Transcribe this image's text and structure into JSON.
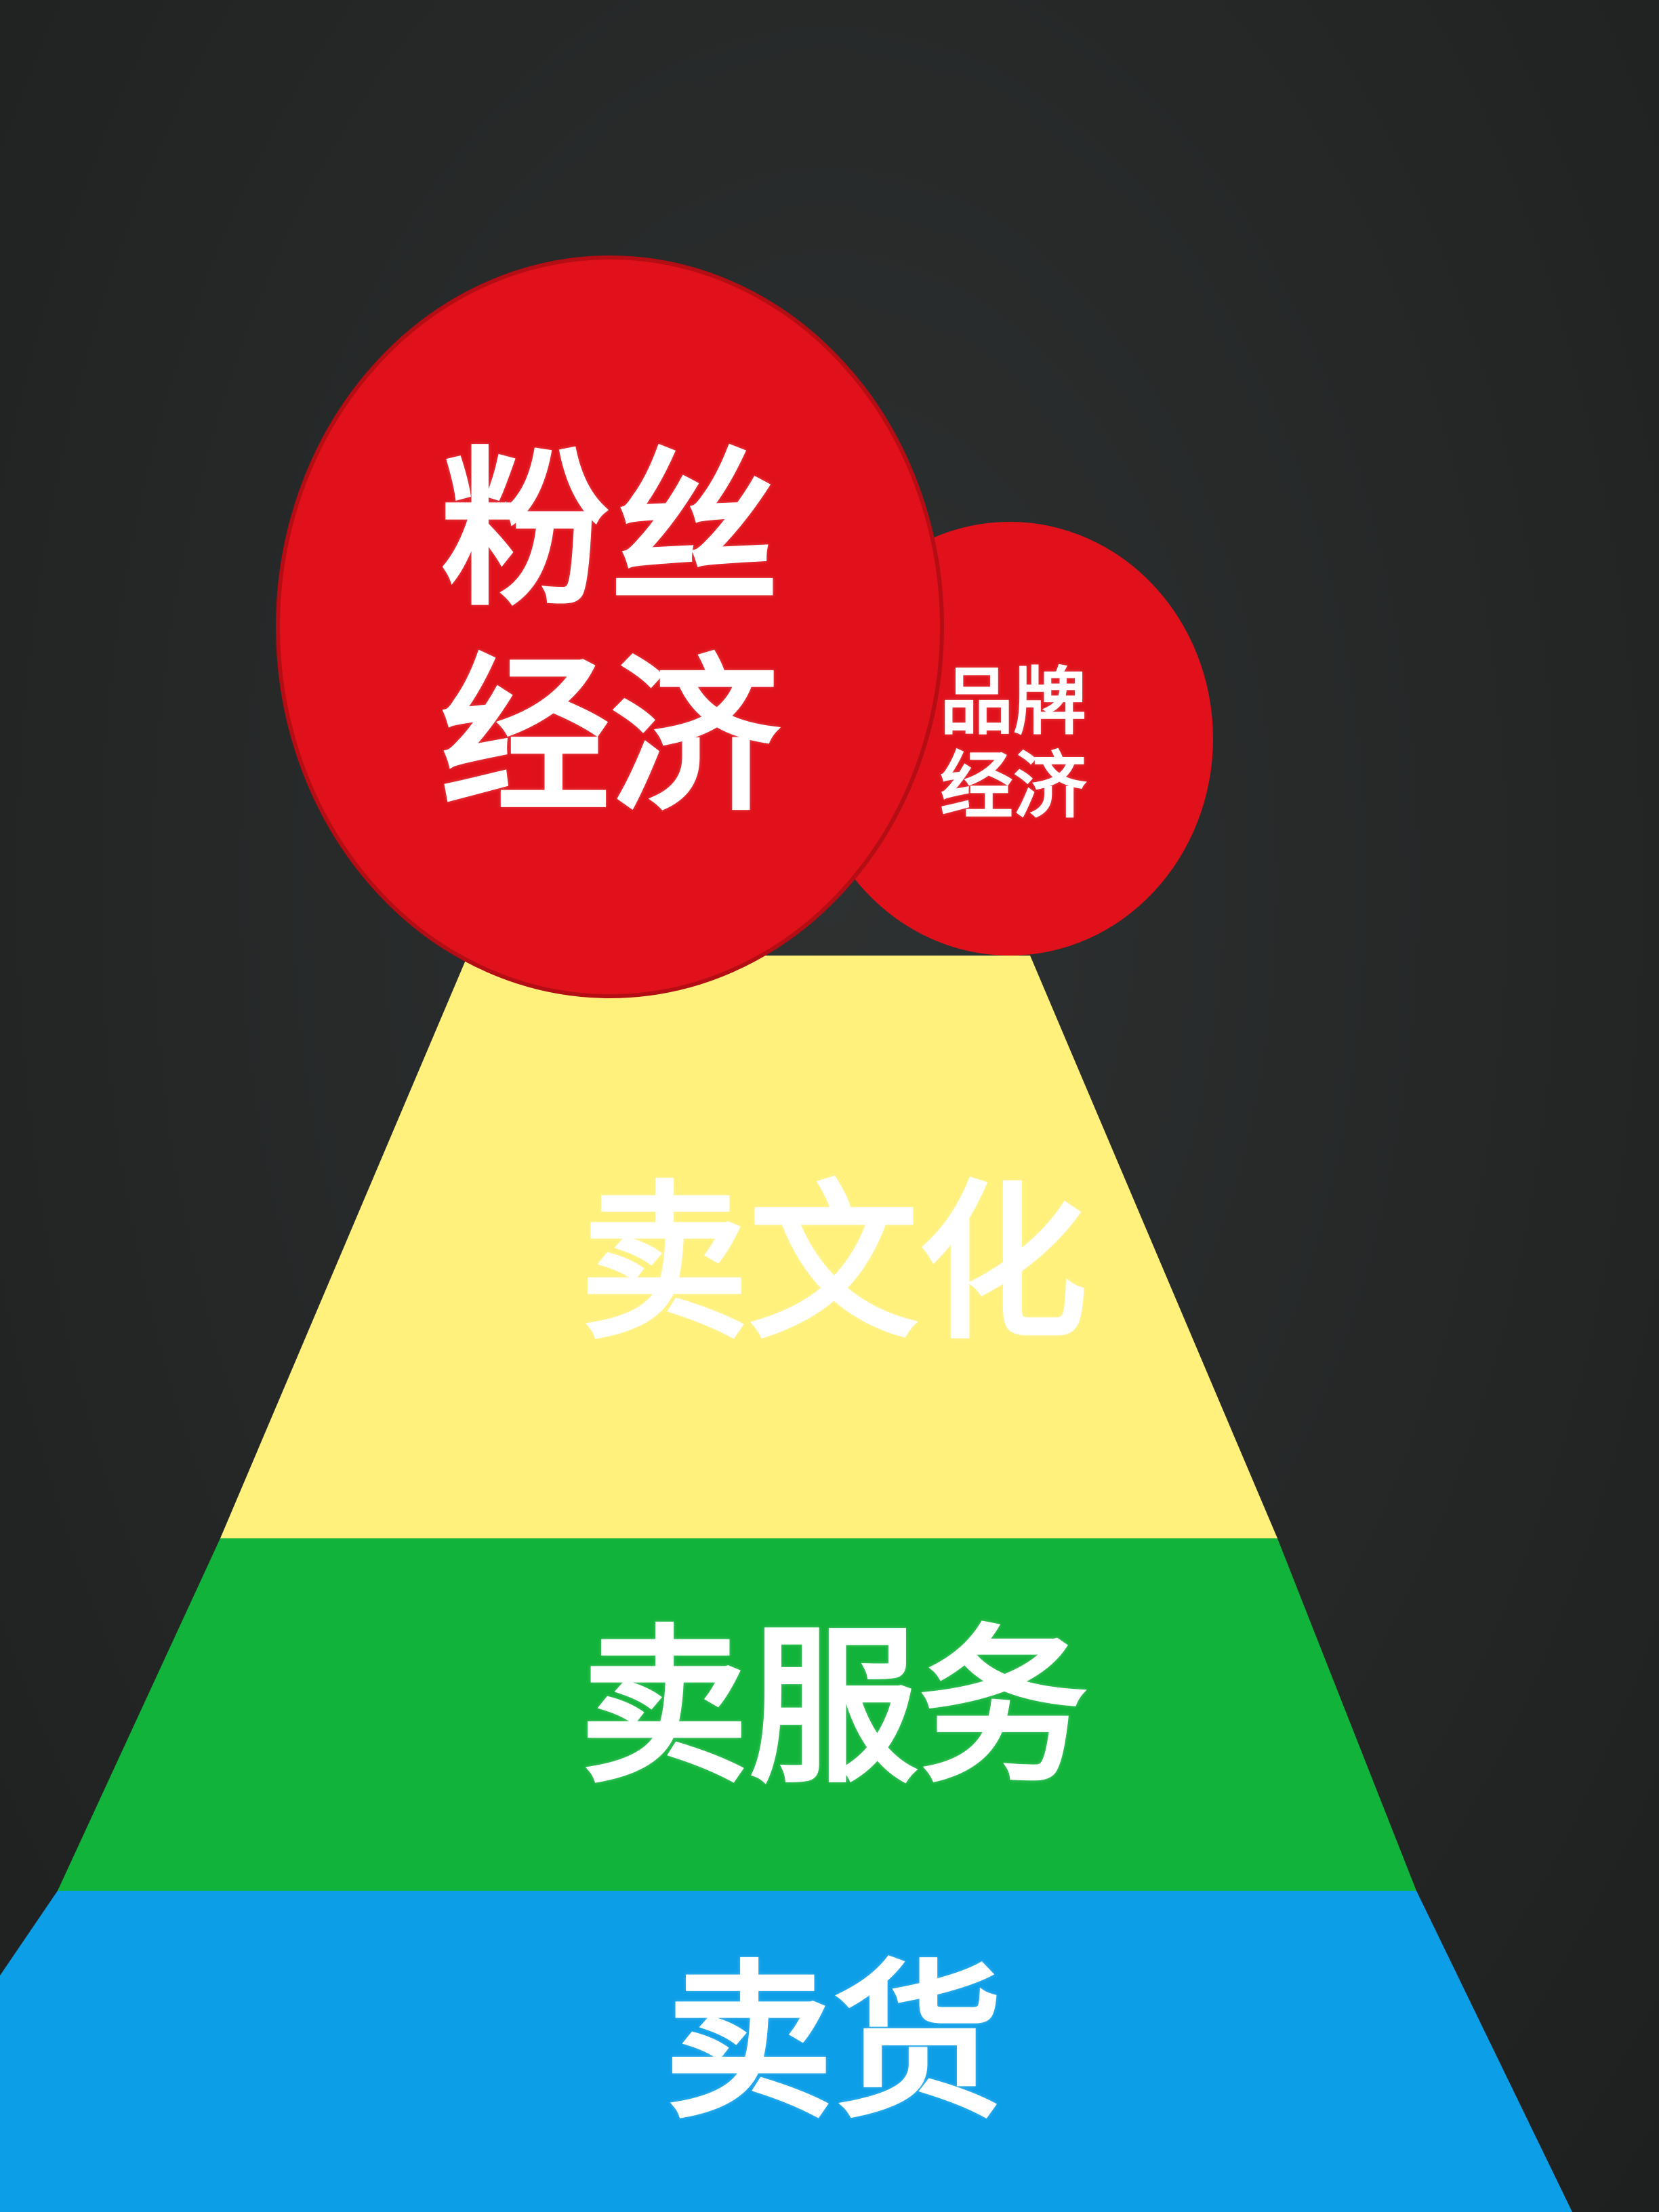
{
  "diagram": {
    "tiers": [
      {
        "label": "卖文化",
        "color": "#fff17c"
      },
      {
        "label": "卖服务",
        "color": "#12b33a"
      },
      {
        "label": "卖货",
        "color": "#0d9ee8"
      }
    ],
    "circles": [
      {
        "label": "粉丝经济",
        "color": "#e0111a"
      },
      {
        "label": "品牌经济",
        "color": "#e0111a"
      }
    ],
    "background_color": "#262828"
  }
}
